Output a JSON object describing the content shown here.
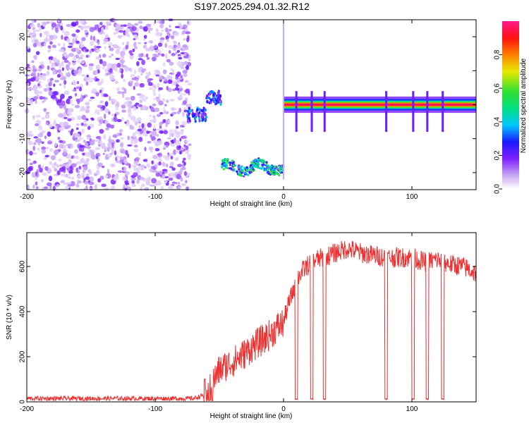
{
  "title": "S197.2025.294.01.32.R12",
  "chart_data": [
    {
      "type": "heatmap",
      "xlabel": "Height of straight line (km)",
      "ylabel": "Frequency (Hz)",
      "xlim": [
        -200,
        150
      ],
      "ylim": [
        -25,
        25
      ],
      "xticks": [
        -200,
        -100,
        0,
        100
      ],
      "yticks": [
        -20,
        -10,
        0,
        10,
        20
      ],
      "colorbar": {
        "label": "Normalized spectral amplitude",
        "range": [
          0,
          1
        ],
        "ticks": [
          "0.0",
          "0.2",
          "0.4",
          "0.6",
          "0.8"
        ],
        "tick_values": [
          0.0,
          0.2,
          0.4,
          0.6,
          0.8
        ],
        "colormap": "rainbow (white-violet-blue-cyan-green-yellow-red-magenta)"
      },
      "features": [
        {
          "description": "noise",
          "x_range": [
            -200,
            -73
          ],
          "y_range": [
            -25,
            25
          ]
        },
        {
          "description": "signal",
          "x_range": [
            -75,
            -48
          ],
          "y_range": [
            -5,
            4
          ]
        },
        {
          "description": "signal",
          "x_range": [
            -48,
            0
          ],
          "y_range": [
            -21,
            -15
          ]
        },
        {
          "description": "carrier",
          "x_range": [
            0,
            150
          ],
          "y": 0,
          "peak": 1.0
        }
      ]
    },
    {
      "type": "line",
      "xlabel": "Height of straight line (km)",
      "ylabel": "SNR (10 * v/v)",
      "xlim": [
        -200,
        150
      ],
      "ylim": [
        0,
        750
      ],
      "xticks": [
        -200,
        -100,
        0,
        100
      ],
      "yticks": [
        0,
        200,
        400,
        600
      ],
      "color": "#ee3030",
      "series": [
        {
          "x": [
            -200,
            -180,
            -160,
            -140,
            -120,
            -100,
            -80,
            -70,
            -62,
            -58,
            -55,
            -52,
            -50,
            -45,
            -40,
            -35,
            -30,
            -25,
            -20,
            -15,
            -10,
            -5,
            0,
            2,
            5,
            8,
            12,
            18,
            25,
            32,
            40,
            50,
            60,
            70,
            80,
            90,
            100,
            110,
            120,
            130,
            140,
            150
          ],
          "y": [
            15,
            15,
            15,
            15,
            15,
            15,
            15,
            15,
            30,
            60,
            90,
            120,
            140,
            160,
            175,
            195,
            215,
            240,
            260,
            280,
            300,
            330,
            350,
            400,
            450,
            500,
            560,
            600,
            630,
            640,
            660,
            680,
            660,
            650,
            640,
            640,
            640,
            620,
            630,
            610,
            600,
            570
          ]
        }
      ],
      "dropouts": [
        {
          "x": 10,
          "y": 10
        },
        {
          "x": 22,
          "y": 10
        },
        {
          "x": 32,
          "y": 10
        },
        {
          "x": 80,
          "y": 10
        },
        {
          "x": 101,
          "y": 10
        },
        {
          "x": 112,
          "y": 10
        },
        {
          "x": 124,
          "y": 10
        }
      ]
    }
  ]
}
